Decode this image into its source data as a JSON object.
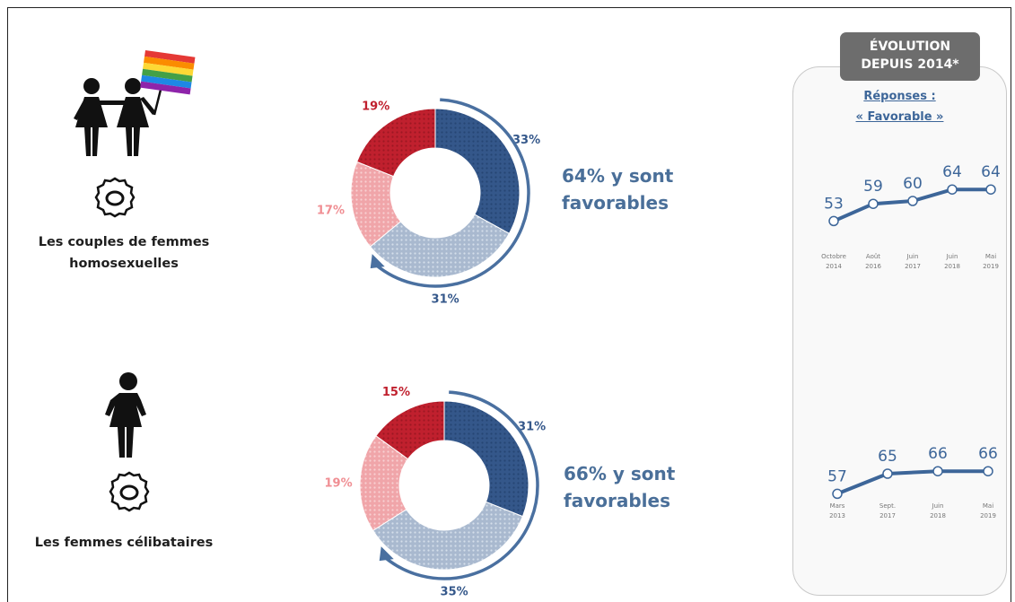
{
  "colors": {
    "dark_blue": "#34578a",
    "light_blue": "#a9b9cf",
    "dark_red": "#c0202e",
    "light_red": "#f0a5a9",
    "text_blue": "#3d6699",
    "arrow": "#4a70a0"
  },
  "panels": [
    {
      "label_line1": "Les couples de femmes",
      "label_line2": "homosexuelles",
      "icon": "two-women-with-rainbow-flag-icon",
      "fav_line1": "64% y sont",
      "fav_line2": "favorables"
    },
    {
      "label_line1": "Les femmes célibataires",
      "label_line2": "",
      "icon": "single-woman-icon",
      "fav_line1": "66% y sont",
      "fav_line2": "favorables"
    }
  ],
  "evolution": {
    "header_line1": "ÉVOLUTION",
    "header_line2": "DEPUIS 2014*",
    "resp_line1": "Réponses :",
    "resp_line2": "« Favorable »"
  },
  "chart_data": [
    {
      "type": "pie",
      "slices": [
        {
          "label": "33%",
          "value": 33,
          "color": "dark_blue"
        },
        {
          "label": "31%",
          "value": 31,
          "color": "light_blue"
        },
        {
          "label": "17%",
          "value": 17,
          "color": "light_red"
        },
        {
          "label": "19%",
          "value": 19,
          "color": "dark_red"
        }
      ]
    },
    {
      "type": "pie",
      "slices": [
        {
          "label": "31%",
          "value": 31,
          "color": "dark_blue"
        },
        {
          "label": "35%",
          "value": 35,
          "color": "light_blue"
        },
        {
          "label": "19%",
          "value": 19,
          "color": "light_red"
        },
        {
          "label": "15%",
          "value": 15,
          "color": "dark_red"
        }
      ]
    },
    {
      "type": "line",
      "categories": [
        [
          "Octobre",
          "2014"
        ],
        [
          "Août",
          "2016"
        ],
        [
          "Juin",
          "2017"
        ],
        [
          "Juin",
          "2018"
        ],
        [
          "Mai",
          "2019"
        ]
      ],
      "values": [
        53,
        59,
        60,
        64,
        64
      ],
      "labels": [
        "53",
        "59",
        "60",
        "64",
        "64"
      ]
    },
    {
      "type": "line",
      "categories": [
        [
          "Mars",
          "2013"
        ],
        [
          "Sept.",
          "2017"
        ],
        [
          "Juin",
          "2018"
        ],
        [
          "Mai",
          "2019"
        ]
      ],
      "values": [
        57,
        65,
        66,
        66
      ],
      "labels": [
        "57",
        "65",
        "66",
        "66"
      ]
    }
  ]
}
